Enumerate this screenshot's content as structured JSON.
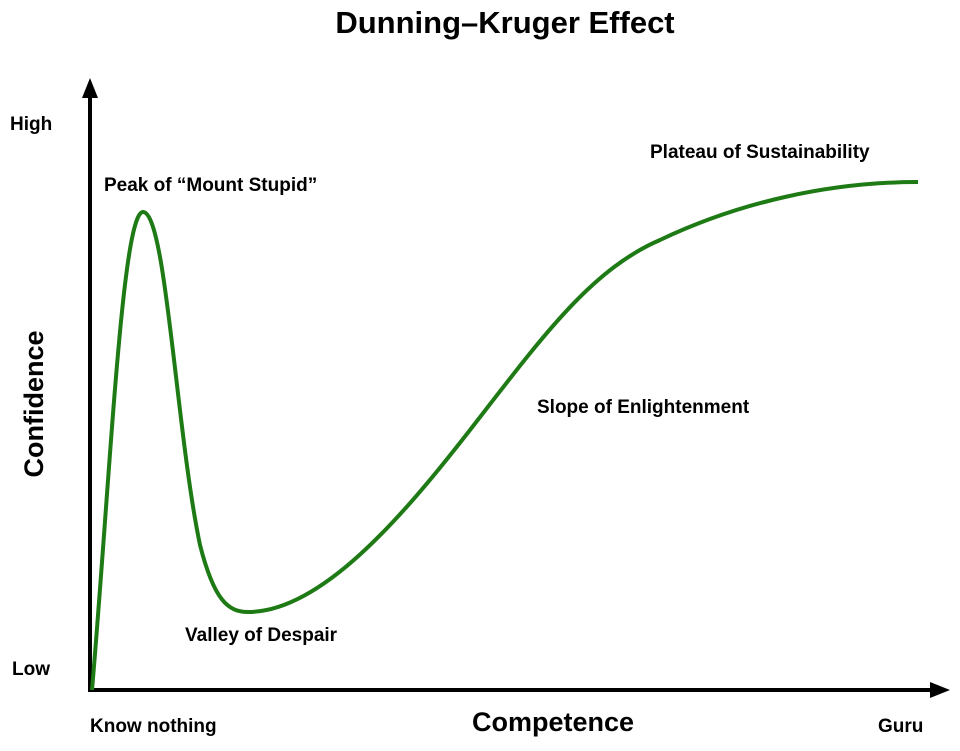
{
  "title": "Dunning–Kruger Effect",
  "y_axis": {
    "label": "Confidence",
    "high": "High",
    "low": "Low"
  },
  "x_axis": {
    "label": "Competence",
    "low": "Know nothing",
    "high": "Guru"
  },
  "annotations": [
    "Peak of “Mount Stupid”",
    "Valley of Despair",
    "Slope of Enlightenment",
    "Plateau of Sustainability"
  ]
}
